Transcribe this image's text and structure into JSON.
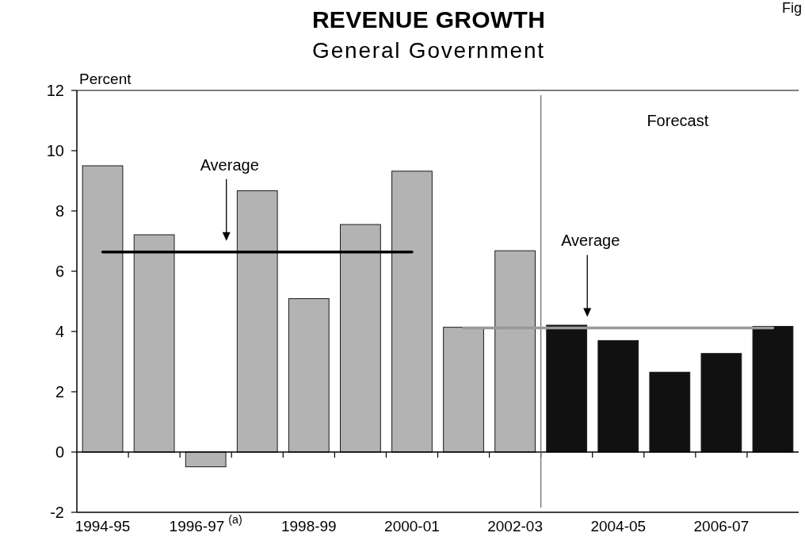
{
  "chart_data": {
    "type": "bar",
    "title": "REVENUE GROWTH",
    "subtitle": "General Government",
    "ylabel": "Percent",
    "categories": [
      "1994-95",
      null,
      "1996-97$^{(a)}$",
      null,
      "1998-99",
      null,
      "2000-01",
      null,
      "2002-03",
      null,
      "2004-05",
      null,
      "2006-07",
      null
    ],
    "series": [
      {
        "values": [
          9.5,
          7.21,
          -0.49,
          8.67,
          5.09,
          7.55,
          9.32,
          4.14,
          6.68,
          4.21,
          3.7,
          2.65,
          3.27,
          4.17
        ],
        "colors": [
          "#b3b3b3",
          "#b3b3b3",
          "#b3b3b3",
          "#b3b3b3",
          "#b3b3b3",
          "#b3b3b3",
          "#b3b3b3",
          "#b3b3b3",
          "#b3b3b3",
          "#111111",
          "#111111",
          "#111111",
          "#111111",
          "#111111"
        ]
      },
      {
        "type": "line",
        "color": "#000000",
        "values": [
          6.64,
          6.64,
          6.64,
          6.64,
          6.64,
          6.64,
          6.64,
          null,
          null,
          null,
          null,
          null,
          null,
          null
        ]
      },
      {
        "type": "line",
        "color": "#999999",
        "values": [
          null,
          null,
          null,
          null,
          null,
          null,
          null,
          4.12,
          4.12,
          4.12,
          4.12,
          4.12,
          4.12,
          4.12
        ]
      }
    ],
    "ylim": [
      -2,
      12
    ],
    "yticks": [
      -2,
      0,
      2,
      4,
      6,
      8,
      10,
      12
    ],
    "annotations": [
      "Average",
      "Average",
      "Forecast",
      "Fig"
    ]
  }
}
